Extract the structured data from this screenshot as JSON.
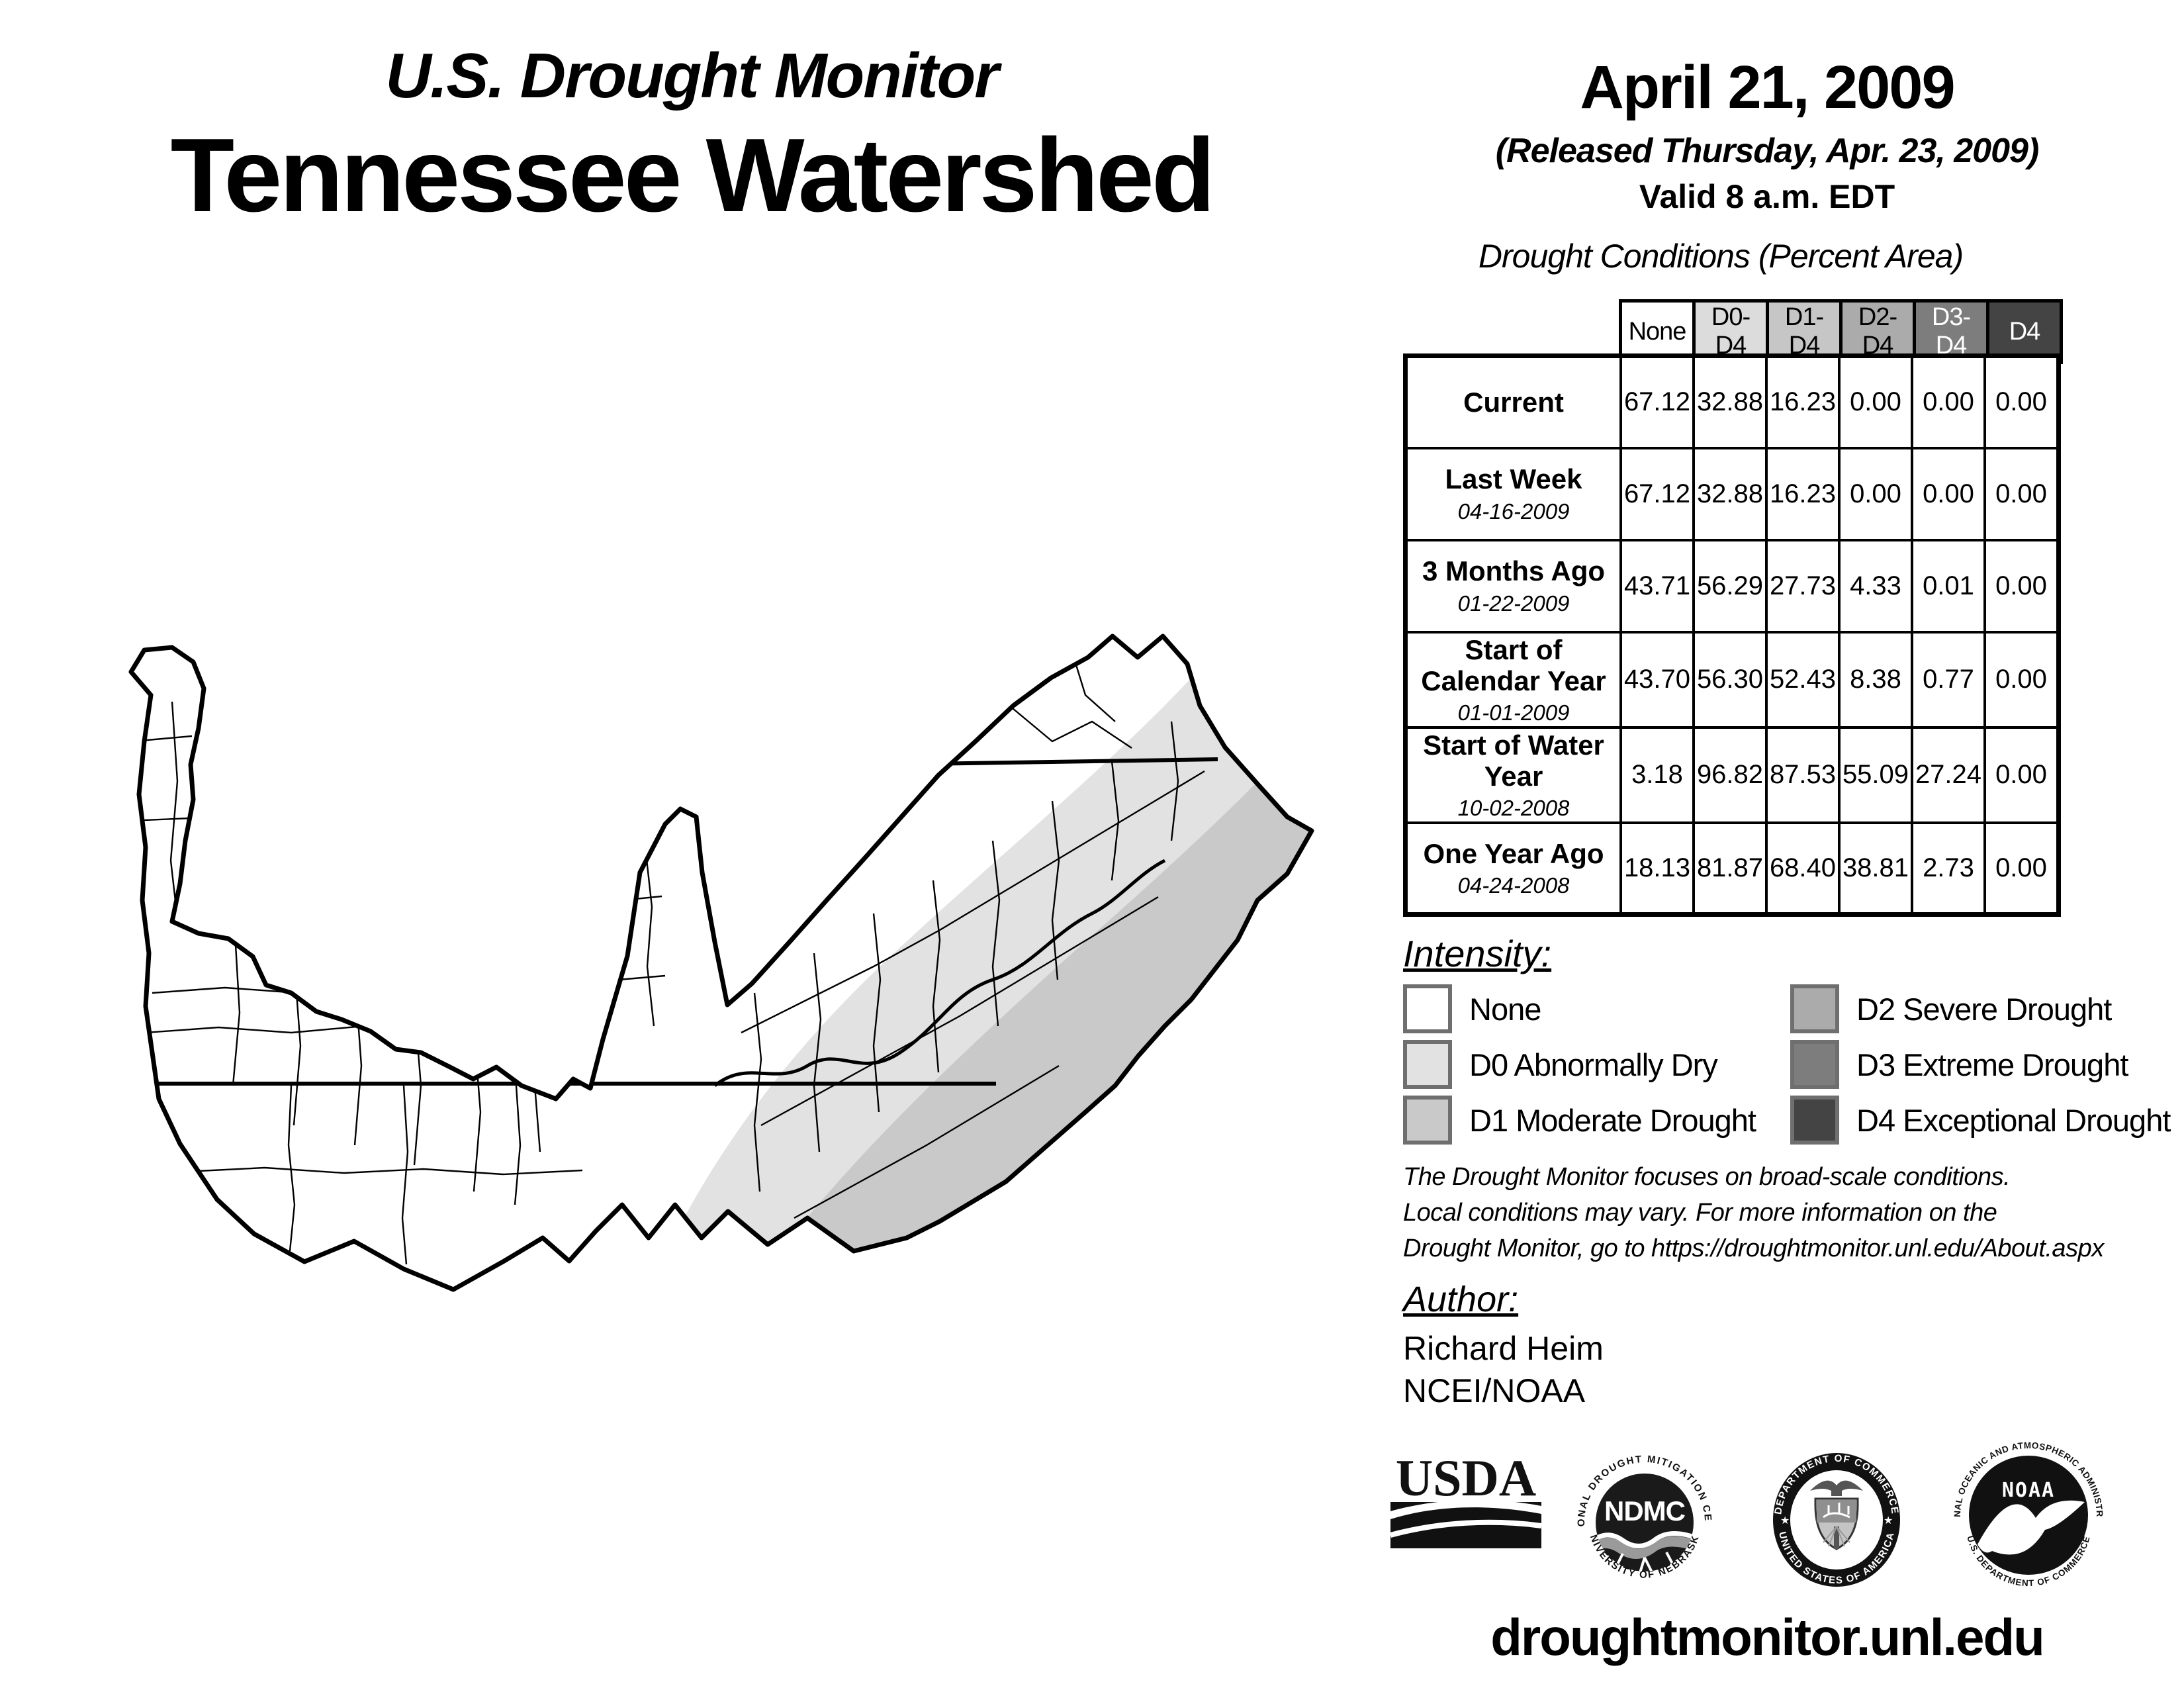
{
  "header": {
    "title_line1": "U.S. Drought Monitor",
    "title_line2": "Tennessee Watershed",
    "date": "April 21, 2009",
    "released": "(Released Thursday, Apr. 23, 2009)",
    "valid": "Valid 8 a.m. EDT"
  },
  "table": {
    "title": "Drought Conditions (Percent Area)",
    "columns": [
      "None",
      "D0-D4",
      "D1-D4",
      "D2-D4",
      "D3-D4",
      "D4"
    ],
    "column_colors": [
      "#ffffff",
      "#dcdcdc",
      "#c6c6c6",
      "#ababab",
      "#7d7d7d",
      "#444444"
    ],
    "column_text_colors": [
      "#000000",
      "#000000",
      "#000000",
      "#000000",
      "#ffffff",
      "#ffffff"
    ],
    "rows": [
      {
        "label": "Current",
        "date": "",
        "values": [
          "67.12",
          "32.88",
          "16.23",
          "0.00",
          "0.00",
          "0.00"
        ]
      },
      {
        "label": "Last Week",
        "date": "04-16-2009",
        "values": [
          "67.12",
          "32.88",
          "16.23",
          "0.00",
          "0.00",
          "0.00"
        ]
      },
      {
        "label": "3 Months Ago",
        "date": "01-22-2009",
        "values": [
          "43.71",
          "56.29",
          "27.73",
          "4.33",
          "0.01",
          "0.00"
        ]
      },
      {
        "label": "Start of Calendar Year",
        "date": "01-01-2009",
        "values": [
          "43.70",
          "56.30",
          "52.43",
          "8.38",
          "0.77",
          "0.00"
        ]
      },
      {
        "label": "Start of Water Year",
        "date": "10-02-2008",
        "values": [
          "3.18",
          "96.82",
          "87.53",
          "55.09",
          "27.24",
          "0.00"
        ]
      },
      {
        "label": "One Year Ago",
        "date": "04-24-2008",
        "values": [
          "18.13",
          "81.87",
          "68.40",
          "38.81",
          "2.73",
          "0.00"
        ]
      }
    ]
  },
  "legend": {
    "title": "Intensity:",
    "items": [
      {
        "label": "None",
        "color": "#ffffff"
      },
      {
        "label": "D0 Abnormally Dry",
        "color": "#e2e2e2"
      },
      {
        "label": "D1 Moderate Drought",
        "color": "#c9c9c9"
      },
      {
        "label": "D2 Severe Drought",
        "color": "#ababab"
      },
      {
        "label": "D3 Extreme Drought",
        "color": "#7d7d7d"
      },
      {
        "label": "D4 Exceptional Drought",
        "color": "#444444"
      }
    ]
  },
  "notes": {
    "line1": "The Drought Monitor focuses on broad-scale conditions.",
    "line2": "Local conditions may vary. For more information on the",
    "line3": "Drought Monitor, go to https://droughtmonitor.unl.edu/About.aspx"
  },
  "author": {
    "heading": "Author:",
    "name": "Richard Heim",
    "org": "NCEI/NOAA"
  },
  "logos": {
    "usda": {
      "text": "USDA"
    },
    "ndmc": {
      "center": "NDMC",
      "ring_top": "NATIONAL DROUGHT MITIGATION CENTER",
      "ring_bottom": "UNIVERSITY OF NEBRASKA"
    },
    "doc": {
      "ring_top": "DEPARTMENT OF COMMERCE",
      "ring_bottom": "UNITED STATES OF AMERICA"
    },
    "noaa": {
      "center": "NOAA",
      "ring_top": "NATIONAL OCEANIC AND ATMOSPHERIC ADMINISTRATION",
      "ring_bottom": "U.S. DEPARTMENT OF COMMERCE"
    }
  },
  "footer": {
    "url": "droughtmonitor.unl.edu"
  },
  "map": {
    "region": "Tennessee Watershed",
    "colors": {
      "none": "#ffffff",
      "d0": "#e2e2e2",
      "d1": "#c9c9c9"
    }
  }
}
